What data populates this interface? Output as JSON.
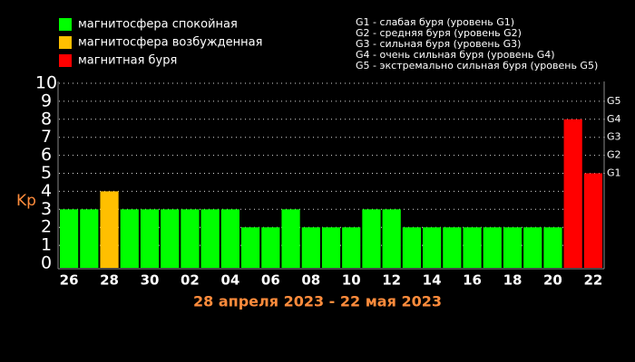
{
  "chart_data": {
    "type": "bar",
    "title": "28 апреля 2023 - 22 мая 2023",
    "y_label": "Kp",
    "categories": [
      "26",
      null,
      "28",
      null,
      "30",
      null,
      "02",
      null,
      "04",
      null,
      "06",
      null,
      "08",
      null,
      "10",
      null,
      "12",
      null,
      "14",
      null,
      "16",
      null,
      "18",
      null,
      "20",
      null,
      "22"
    ],
    "values": [
      3,
      3,
      4,
      3,
      3,
      3,
      3,
      3,
      3,
      2,
      2,
      3,
      2,
      2,
      2,
      3,
      3,
      2,
      2,
      2,
      2,
      2,
      2,
      2,
      2,
      8,
      5
    ],
    "colors": [
      "#00ff00",
      "#00ff00",
      "#ffbf00",
      "#00ff00",
      "#00ff00",
      "#00ff00",
      "#00ff00",
      "#00ff00",
      "#00ff00",
      "#00ff00",
      "#00ff00",
      "#00ff00",
      "#00ff00",
      "#00ff00",
      "#00ff00",
      "#00ff00",
      "#00ff00",
      "#00ff00",
      "#00ff00",
      "#00ff00",
      "#00ff00",
      "#00ff00",
      "#00ff00",
      "#00ff00",
      "#00ff00",
      "#ff0000",
      "#ff0000"
    ],
    "ylim": [
      0,
      10
    ],
    "yticks": [
      0,
      1,
      2,
      3,
      4,
      5,
      6,
      7,
      8,
      9,
      10
    ],
    "y2lim": [
      0,
      10
    ],
    "y2ticks": [
      {
        "value": 5,
        "label": "G1"
      },
      {
        "value": 6,
        "label": "G2"
      },
      {
        "value": 7,
        "label": "G3"
      },
      {
        "value": 8,
        "label": "G4"
      },
      {
        "value": 9,
        "label": "G5"
      }
    ],
    "grid": true,
    "legend": [
      {
        "label": "магнитосфера спокойная",
        "color": "#00ff00"
      },
      {
        "label": "магнитосфера возбужденная",
        "color": "#ffbf00"
      },
      {
        "label": "магнитная буря",
        "color": "#ff0000"
      }
    ],
    "notes": [
      "G1 - слабая буря (уровень G1)",
      "G2 - средняя буря (уровень G2)",
      "G3 - сильная буря (уровень G3)",
      "G4 - очень сильная буря (уровень G4)",
      "G5 - экстремально сильная буря (уровень G5)"
    ]
  }
}
